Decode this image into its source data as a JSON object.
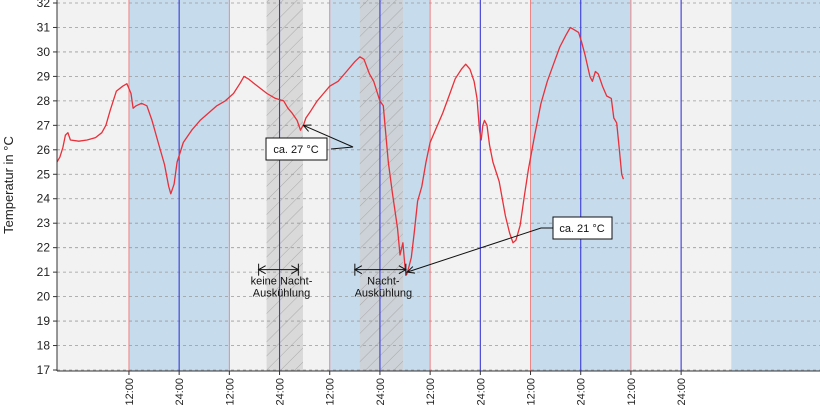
{
  "chart_data": {
    "type": "line",
    "ylabel": "Temperatur in °C",
    "ylim": [
      17,
      32
    ],
    "y_ticks": [
      17,
      18,
      19,
      20,
      21,
      22,
      23,
      24,
      25,
      26,
      27,
      28,
      29,
      30,
      31,
      32
    ],
    "x_unit": "hours",
    "xlim": [
      -5.2,
      177.2
    ],
    "x_ticks": [
      {
        "x": 12,
        "label": "12:00"
      },
      {
        "x": 24,
        "label": "24:00"
      },
      {
        "x": 36,
        "label": "12:00"
      },
      {
        "x": 48,
        "label": "24:00"
      },
      {
        "x": 60,
        "label": "12:00"
      },
      {
        "x": 72,
        "label": "24:00"
      },
      {
        "x": 84,
        "label": "12:00"
      },
      {
        "x": 96,
        "label": "24:00"
      },
      {
        "x": 108,
        "label": "12:00"
      },
      {
        "x": 120,
        "label": "24:00"
      },
      {
        "x": 132,
        "label": "12:00"
      },
      {
        "x": 144,
        "label": "24:00"
      }
    ],
    "grid": true,
    "colors": {
      "line": "#e8303a",
      "night_band": "#c6dbec",
      "hatch_band": "#cfcfcf",
      "midnight_line": "#3a3ad8",
      "noon_line": "#ee7a7a",
      "plot_bg": "#f2f2f2"
    },
    "night_bands": [
      [
        12,
        36
      ],
      [
        60,
        84
      ],
      [
        108,
        132
      ],
      [
        156,
        177.2
      ]
    ],
    "hatched_regions": [
      [
        44.9,
        53.6
      ],
      [
        67.2,
        77.5
      ]
    ],
    "series": [
      {
        "values": [
          [
            -5.2,
            25.5
          ],
          [
            -4.5,
            25.7
          ],
          [
            -3.8,
            26.1
          ],
          [
            -3.2,
            26.6
          ],
          [
            -2.6,
            26.7
          ],
          [
            -2.0,
            26.4
          ],
          [
            0,
            26.35
          ],
          [
            2,
            26.4
          ],
          [
            4,
            26.5
          ],
          [
            5.5,
            26.7
          ],
          [
            6.5,
            27.0
          ],
          [
            7.5,
            27.6
          ],
          [
            9,
            28.4
          ],
          [
            10.5,
            28.6
          ],
          [
            11.5,
            28.7
          ],
          [
            12.5,
            28.3
          ],
          [
            13,
            27.7
          ],
          [
            13.7,
            27.8
          ],
          [
            15,
            27.9
          ],
          [
            16.3,
            27.8
          ],
          [
            17.5,
            27.2
          ],
          [
            19,
            26.3
          ],
          [
            20.5,
            25.4
          ],
          [
            21.5,
            24.5
          ],
          [
            22,
            24.2
          ],
          [
            22.8,
            24.6
          ],
          [
            23.5,
            25.5
          ],
          [
            25,
            26.3
          ],
          [
            27,
            26.8
          ],
          [
            29,
            27.2
          ],
          [
            31,
            27.5
          ],
          [
            33,
            27.8
          ],
          [
            35,
            28.0
          ],
          [
            37,
            28.3
          ],
          [
            38.5,
            28.7
          ],
          [
            39.5,
            29.0
          ],
          [
            40.5,
            28.9
          ],
          [
            42,
            28.7
          ],
          [
            43.5,
            28.5
          ],
          [
            45,
            28.3
          ],
          [
            47,
            28.1
          ],
          [
            49,
            28.0
          ],
          [
            50,
            27.7
          ],
          [
            51,
            27.5
          ],
          [
            52.2,
            27.2
          ],
          [
            53,
            26.8
          ],
          [
            53.3,
            26.9
          ],
          [
            53.7,
            27.0
          ],
          [
            54.3,
            27.3
          ],
          [
            55.5,
            27.6
          ],
          [
            57,
            28.0
          ],
          [
            58.5,
            28.3
          ],
          [
            60,
            28.6
          ],
          [
            62,
            28.8
          ],
          [
            64,
            29.2
          ],
          [
            66,
            29.6
          ],
          [
            67.2,
            29.8
          ],
          [
            68.2,
            29.7
          ],
          [
            69.5,
            29.1
          ],
          [
            70.5,
            28.8
          ],
          [
            72,
            28.0
          ],
          [
            72.8,
            27.8
          ],
          [
            73.2,
            27.0
          ],
          [
            74,
            25.5
          ],
          [
            75,
            24.2
          ],
          [
            76.2,
            22.8
          ],
          [
            76.8,
            21.7
          ],
          [
            77.5,
            22.2
          ],
          [
            78,
            21.2
          ],
          [
            78.4,
            20.9
          ],
          [
            78.9,
            21.2
          ],
          [
            79.5,
            21.6
          ],
          [
            80.2,
            22.6
          ],
          [
            81,
            23.9
          ],
          [
            82,
            24.5
          ],
          [
            83,
            25.5
          ],
          [
            84,
            26.3
          ],
          [
            85.5,
            26.9
          ],
          [
            87,
            27.5
          ],
          [
            88.5,
            28.2
          ],
          [
            90,
            28.9
          ],
          [
            91.5,
            29.3
          ],
          [
            92.5,
            29.5
          ],
          [
            93.5,
            29.3
          ],
          [
            94.5,
            28.8
          ],
          [
            95.2,
            28.1
          ],
          [
            95.8,
            26.8
          ],
          [
            96.2,
            26.4
          ],
          [
            96.6,
            27.0
          ],
          [
            97,
            27.2
          ],
          [
            97.6,
            27.0
          ],
          [
            98.2,
            26.2
          ],
          [
            99,
            25.5
          ],
          [
            100.5,
            24.7
          ],
          [
            102,
            23.3
          ],
          [
            103,
            22.6
          ],
          [
            103.8,
            22.2
          ],
          [
            104.5,
            22.3
          ],
          [
            105.5,
            22.9
          ],
          [
            106.5,
            24.1
          ],
          [
            107.5,
            25.2
          ],
          [
            109,
            26.6
          ],
          [
            110.5,
            27.9
          ],
          [
            112,
            28.8
          ],
          [
            113.5,
            29.5
          ],
          [
            115,
            30.2
          ],
          [
            116.5,
            30.7
          ],
          [
            117.5,
            31.0
          ],
          [
            118.5,
            30.9
          ],
          [
            119.5,
            30.8
          ],
          [
            120.2,
            30.4
          ],
          [
            121,
            29.9
          ],
          [
            122.2,
            29.0
          ],
          [
            122.8,
            28.8
          ],
          [
            123.5,
            29.2
          ],
          [
            124.2,
            29.1
          ],
          [
            125.2,
            28.6
          ],
          [
            126.2,
            28.2
          ],
          [
            127.3,
            28.1
          ],
          [
            127.9,
            27.3
          ],
          [
            128.6,
            27.1
          ],
          [
            129.3,
            25.9
          ],
          [
            129.8,
            25.0
          ],
          [
            130.2,
            24.8
          ]
        ]
      }
    ],
    "annotations": [
      {
        "label": "ca. 27 °C",
        "x": 53.7,
        "y": 27.0
      },
      {
        "label": "ca. 21 °C",
        "x": 78.5,
        "y": 21.0
      }
    ],
    "range_labels": [
      {
        "lines": [
          "keine Nacht-",
          "Auskühlung"
        ],
        "x_start": 43.0,
        "x_end": 52.5,
        "y": 21.1
      },
      {
        "lines": [
          "Nacht-",
          "Auskühlung"
        ],
        "x_start": 66.0,
        "x_end": 78.2,
        "y": 21.1
      }
    ]
  }
}
